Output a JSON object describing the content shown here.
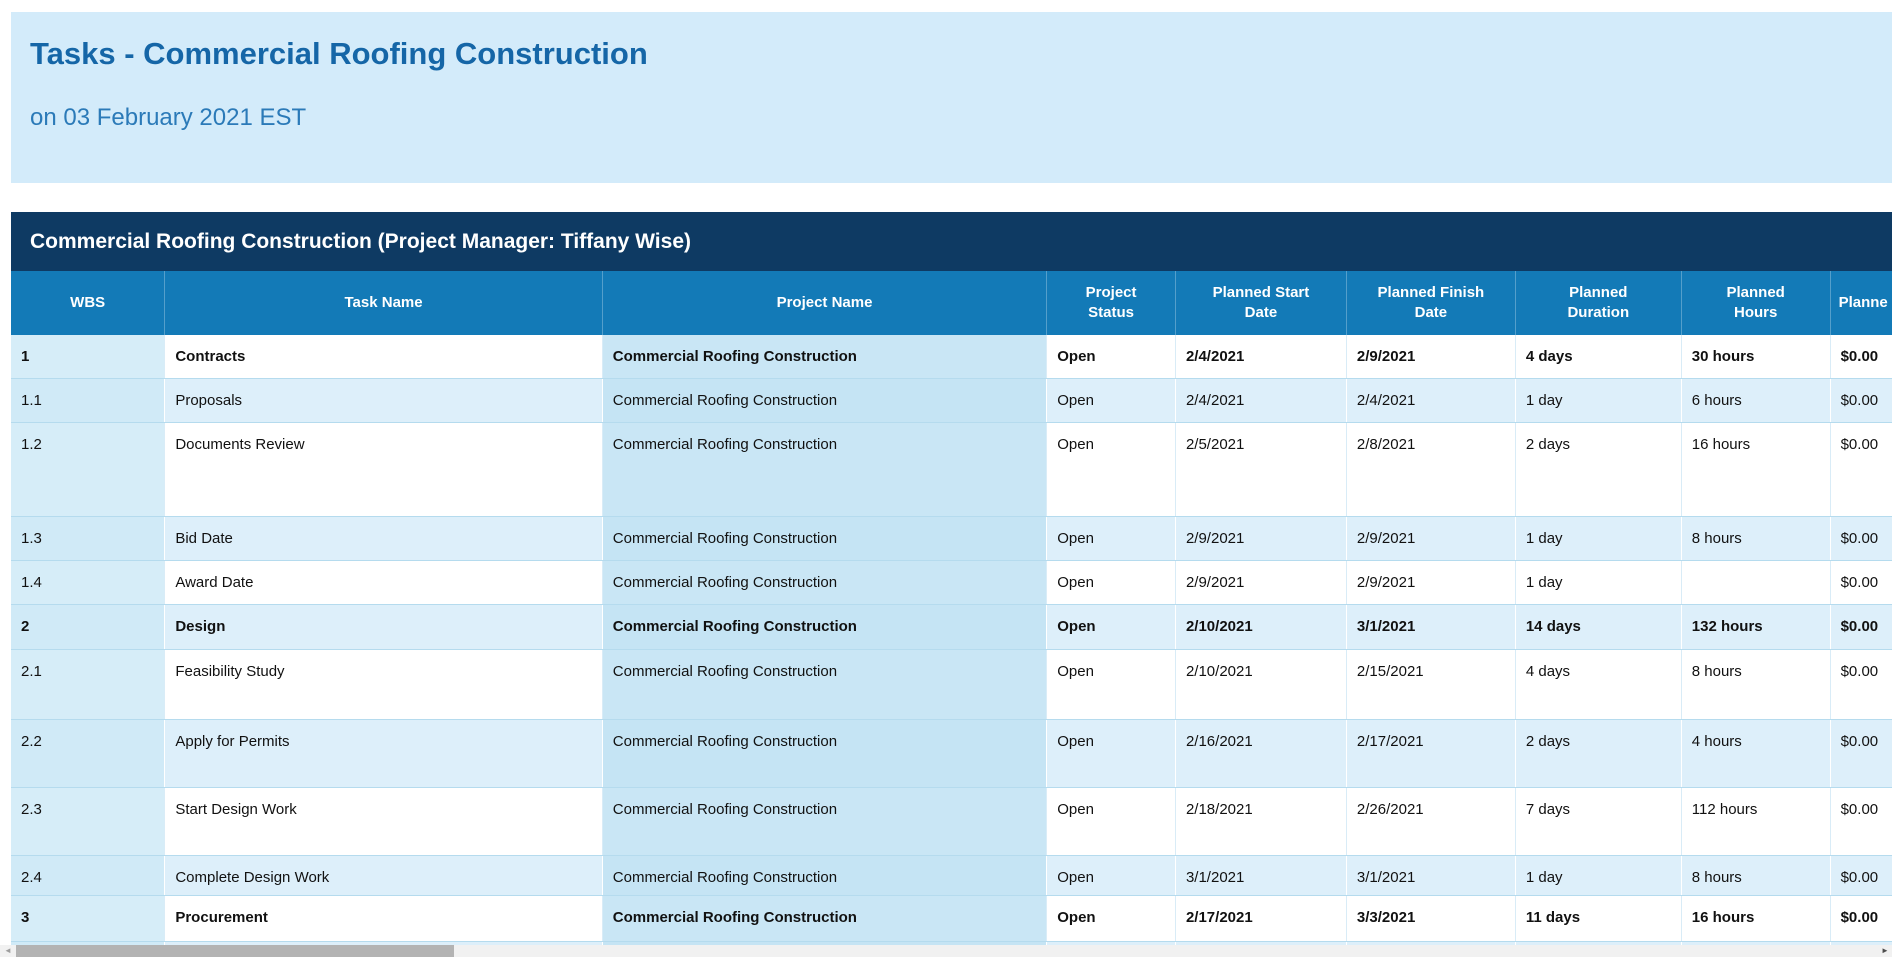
{
  "header": {
    "title": "Tasks - Commercial Roofing Construction",
    "date_line": "on 03 February 2021 EST"
  },
  "table": {
    "caption": "Commercial Roofing Construction (Project Manager: Tiffany Wise)",
    "columns": {
      "wbs": "WBS",
      "task": "Task Name",
      "project": "Project Name",
      "status": "Project Status",
      "start": "Planned Start Date",
      "finish": "Planned Finish Date",
      "duration": "Planned Duration",
      "hours": "Planned Hours",
      "cost": "Planne"
    },
    "rows": [
      {
        "wbs": "1",
        "task": "Contracts",
        "project": "Commercial Roofing Construction",
        "status": "Open",
        "start": "2/4/2021",
        "finish": "2/9/2021",
        "duration": "4 days",
        "hours": "30 hours",
        "cost": "$0.00",
        "summary": true
      },
      {
        "wbs": "1.1",
        "task": "Proposals",
        "project": "Commercial Roofing Construction",
        "status": "Open",
        "start": "2/4/2021",
        "finish": "2/4/2021",
        "duration": "1 day",
        "hours": "6 hours",
        "cost": "$0.00",
        "summary": false
      },
      {
        "wbs": "1.2",
        "task": "Documents Review",
        "project": "Commercial Roofing Construction",
        "status": "Open",
        "start": "2/5/2021",
        "finish": "2/8/2021",
        "duration": "2 days",
        "hours": "16 hours",
        "cost": "$0.00",
        "summary": false
      },
      {
        "wbs": "1.3",
        "task": "Bid Date",
        "project": "Commercial Roofing Construction",
        "status": "Open",
        "start": "2/9/2021",
        "finish": "2/9/2021",
        "duration": "1 day",
        "hours": "8 hours",
        "cost": "$0.00",
        "summary": false
      },
      {
        "wbs": "1.4",
        "task": "Award Date",
        "project": "Commercial Roofing Construction",
        "status": "Open",
        "start": "2/9/2021",
        "finish": "2/9/2021",
        "duration": "1 day",
        "hours": "",
        "cost": "$0.00",
        "summary": false
      },
      {
        "wbs": "2",
        "task": "Design",
        "project": "Commercial Roofing Construction",
        "status": "Open",
        "start": "2/10/2021",
        "finish": "3/1/2021",
        "duration": "14 days",
        "hours": "132 hours",
        "cost": "$0.00",
        "summary": true
      },
      {
        "wbs": "2.1",
        "task": "Feasibility Study",
        "project": "Commercial Roofing Construction",
        "status": "Open",
        "start": "2/10/2021",
        "finish": "2/15/2021",
        "duration": "4 days",
        "hours": "8 hours",
        "cost": "$0.00",
        "summary": false
      },
      {
        "wbs": "2.2",
        "task": "Apply for Permits",
        "project": "Commercial Roofing Construction",
        "status": "Open",
        "start": "2/16/2021",
        "finish": "2/17/2021",
        "duration": "2 days",
        "hours": "4 hours",
        "cost": "$0.00",
        "summary": false
      },
      {
        "wbs": "2.3",
        "task": "Start Design Work",
        "project": "Commercial Roofing Construction",
        "status": "Open",
        "start": "2/18/2021",
        "finish": "2/26/2021",
        "duration": "7 days",
        "hours": "112 hours",
        "cost": "$0.00",
        "summary": false
      },
      {
        "wbs": "2.4",
        "task": "Complete Design Work",
        "project": "Commercial Roofing Construction",
        "status": "Open",
        "start": "3/1/2021",
        "finish": "3/1/2021",
        "duration": "1 day",
        "hours": "8 hours",
        "cost": "$0.00",
        "summary": false
      },
      {
        "wbs": "3",
        "task": "Procurement",
        "project": "Commercial Roofing Construction",
        "status": "Open",
        "start": "2/17/2021",
        "finish": "3/3/2021",
        "duration": "11 days",
        "hours": "16 hours",
        "cost": "$0.00",
        "summary": true
      }
    ]
  },
  "scrollbar": {
    "left_arrow_icon": "◄",
    "right_arrow_icon": "►"
  },
  "colors": {
    "band_blue": "#d3ebfa",
    "title_text": "#1566a7",
    "date_text": "#2b7ab8",
    "caption_navy": "#0e3a63",
    "header_blue": "#137ab7",
    "row_alt_blue": "#ddeffa",
    "wbs_column_blue": "#d6edf8",
    "project_column_blue": "#c9e6f5",
    "grid_line": "#b5dbee",
    "scroll_thumb": "#b3b3b3"
  }
}
